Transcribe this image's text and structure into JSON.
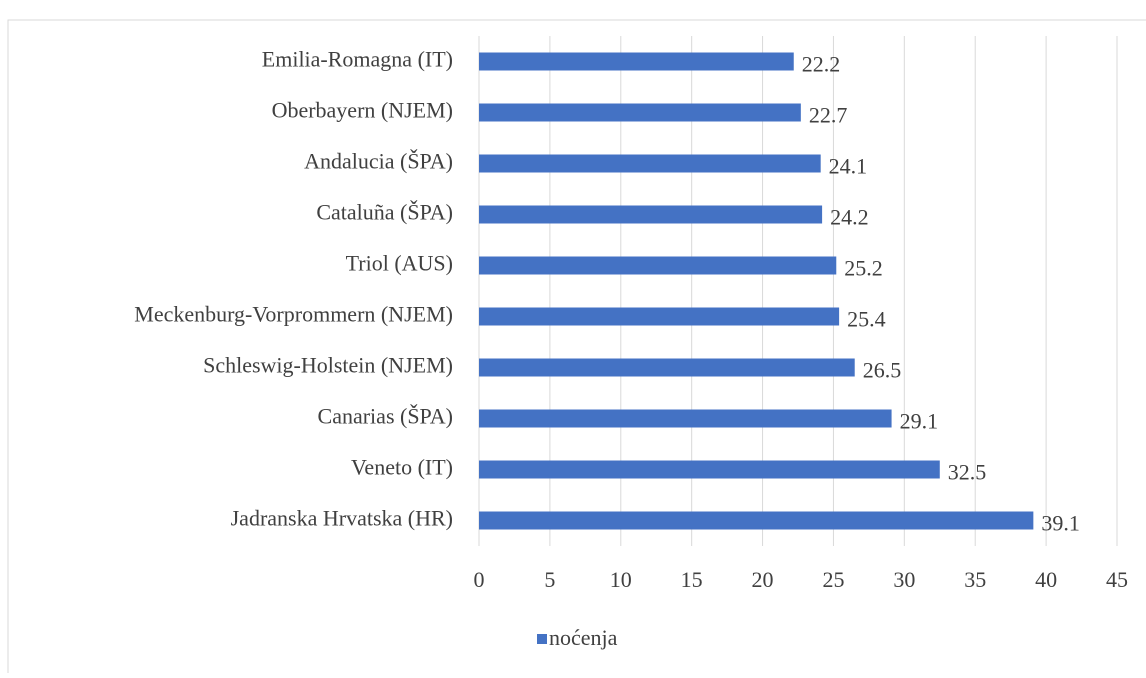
{
  "chart_data": {
    "type": "bar",
    "orientation": "horizontal",
    "categories": [
      "Emilia-Romagna (IT)",
      "Oberbayern (NJEM)",
      "Andalucia (ŠPA)",
      "Cataluña (ŠPA)",
      "Triol (AUS)",
      "Meckenburg-Vorprommern (NJEM)",
      "Schleswig-Holstein (NJEM)",
      "Canarias (ŠPA)",
      "Veneto (IT)",
      "Jadranska Hrvatska (HR)"
    ],
    "series": [
      {
        "name": "noćenja",
        "color": "#4472c4",
        "values": [
          22.2,
          22.7,
          24.1,
          24.2,
          25.2,
          25.4,
          26.5,
          29.1,
          32.5,
          39.1
        ]
      }
    ],
    "xlim": [
      0,
      45
    ],
    "xticks": [
      0,
      5,
      10,
      15,
      20,
      25,
      30,
      35,
      40,
      45
    ],
    "grid": true,
    "legend": "bottom"
  }
}
